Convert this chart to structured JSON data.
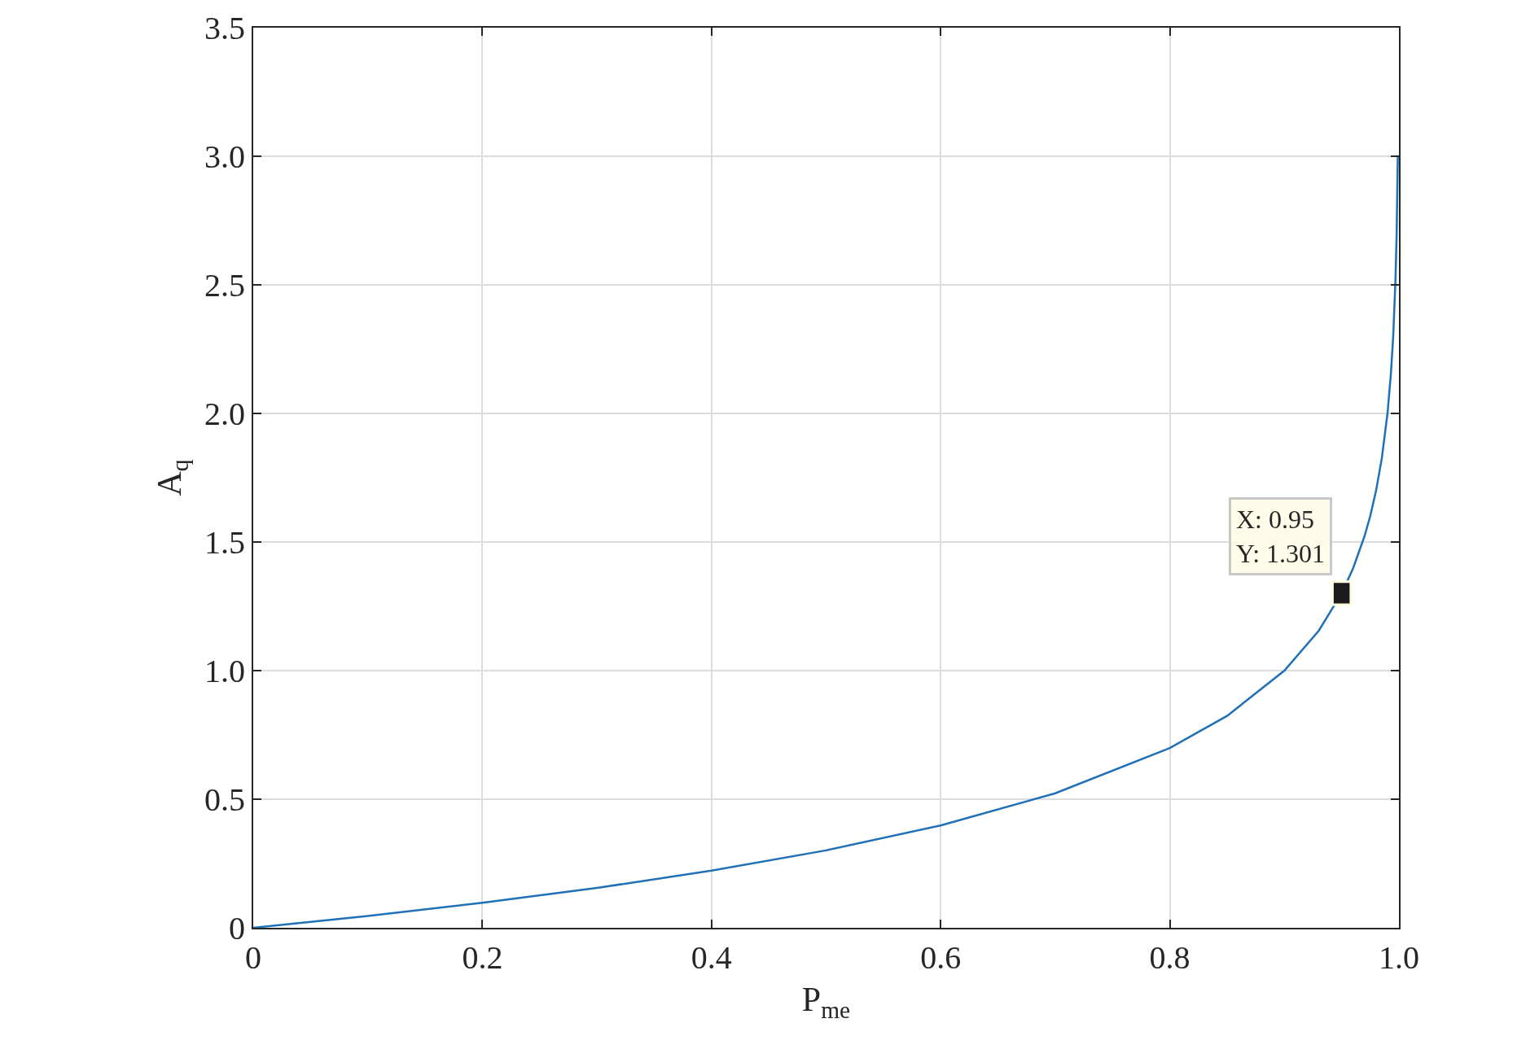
{
  "chart_data": {
    "type": "line",
    "xlabel": "P$_{me}$",
    "ylabel": "A$_{q}$",
    "x": [
      0,
      0.1,
      0.2,
      0.3,
      0.4,
      0.5,
      0.6,
      0.7,
      0.8,
      0.85,
      0.9,
      0.93,
      0.95,
      0.96,
      0.97,
      0.975,
      0.98,
      0.985,
      0.99,
      0.993,
      0.995,
      0.997,
      0.998,
      0.999
    ],
    "series": [
      {
        "color": "#2070b8",
        "values": [
          0,
          0.046,
          0.097,
          0.155,
          0.222,
          0.301,
          0.398,
          0.523,
          0.699,
          0.824,
          1.0,
          1.155,
          1.301,
          1.398,
          1.523,
          1.602,
          1.699,
          1.824,
          2.0,
          2.155,
          2.301,
          2.523,
          2.699,
          3.0
        ]
      }
    ],
    "xlim": [
      0,
      1
    ],
    "xticks": [
      0,
      0.2,
      0.4,
      0.6,
      0.8,
      {
        "value": 1,
        "label": "1.0"
      }
    ],
    "ylim": [
      0,
      3.5
    ],
    "yticks": [
      0,
      0.5,
      {
        "value": 1,
        "label": "1.0"
      },
      1.5,
      {
        "value": 2,
        "label": "2.0"
      },
      2.5,
      {
        "value": 3,
        "label": "3.0"
      },
      3.5
    ],
    "grid": true,
    "marker": "none",
    "line_style": "solid",
    "annotations": [
      {
        "text": "X: 0.95\nY: 1.301",
        "x": 0.95,
        "y": 1.301
      }
    ]
  }
}
